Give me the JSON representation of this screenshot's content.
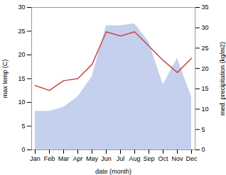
{
  "chart_data": {
    "type": "line",
    "xlabel": "date (month)",
    "ylabel": "max temp (C)",
    "y2label": "med. precipitation (kg/m2)",
    "categories": [
      "Jan",
      "Feb",
      "Mar",
      "Apr",
      "May",
      "Jun",
      "Jul",
      "Aug",
      "Sep",
      "Oct",
      "Nov",
      "Dec"
    ],
    "series": [
      {
        "type": "area",
        "color": "#c5d0ee",
        "axis": "y2",
        "values": [
          9.5,
          9.5,
          10.5,
          13.0,
          18.0,
          30.5,
          30.5,
          31.0,
          26.5,
          16.0,
          22.5,
          13.0
        ]
      },
      {
        "type": "line",
        "color": "#cc4444",
        "axis": "y2",
        "values": [
          15.8,
          14.6,
          17.0,
          17.5,
          21.0,
          29.0,
          28.0,
          29.0,
          25.5,
          22.0,
          19.0,
          22.5
        ]
      }
    ],
    "ylim": [
      0,
      30
    ],
    "yticks": [
      0,
      5,
      10,
      15,
      20,
      25,
      30
    ],
    "y2lim": [
      0,
      35
    ],
    "y2ticks": [
      0,
      5,
      10,
      15,
      20,
      25,
      30,
      35
    ],
    "grid": false
  }
}
